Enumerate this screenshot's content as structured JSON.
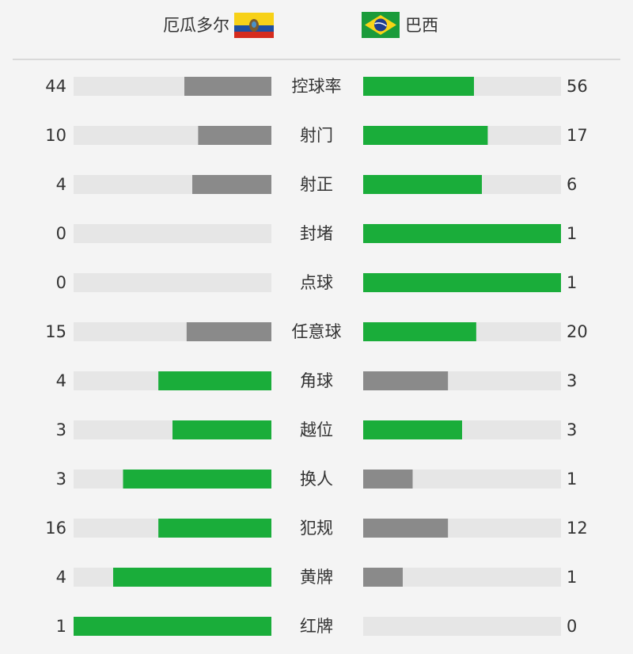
{
  "header": {
    "home": "厄瓜多尔",
    "away": "巴西"
  },
  "rows": [
    {
      "label": "控球率",
      "home": 44,
      "away": 56
    },
    {
      "label": "射门",
      "home": 10,
      "away": 17
    },
    {
      "label": "射正",
      "home": 4,
      "away": 6
    },
    {
      "label": "封堵",
      "home": 0,
      "away": 1
    },
    {
      "label": "点球",
      "home": 0,
      "away": 1
    },
    {
      "label": "任意球",
      "home": 15,
      "away": 20
    },
    {
      "label": "角球",
      "home": 4,
      "away": 3
    },
    {
      "label": "越位",
      "home": 3,
      "away": 3
    },
    {
      "label": "换人",
      "home": 3,
      "away": 1
    },
    {
      "label": "犯规",
      "home": 16,
      "away": 12
    },
    {
      "label": "黄牌",
      "home": 4,
      "away": 1
    },
    {
      "label": "红牌",
      "home": 1,
      "away": 0
    }
  ]
}
